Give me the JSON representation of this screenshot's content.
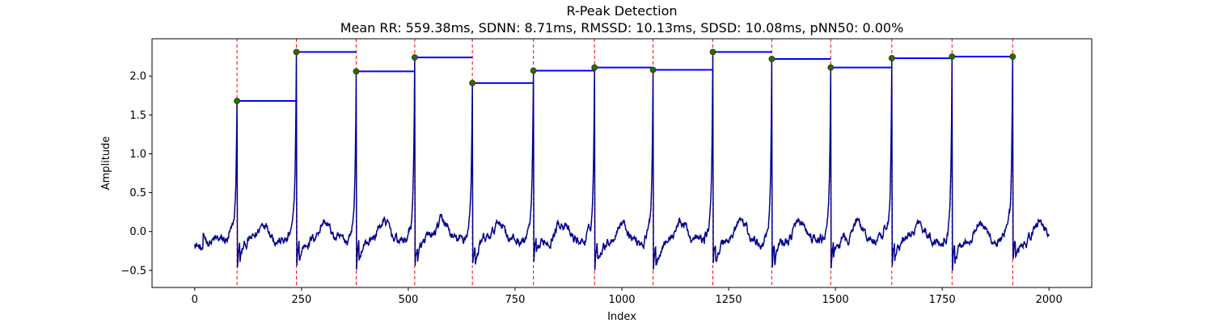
{
  "chart_data": {
    "type": "line",
    "title": "R-Peak Detection",
    "subtitle": "Mean RR: 559.38ms, SDNN: 8.71ms, RMSSD: 10.13ms, SDSD: 10.08ms, pNN50: 0.00%",
    "xlabel": "Index",
    "ylabel": "Amplitude",
    "xlim": [
      -100,
      2100
    ],
    "ylim": [
      -0.72,
      2.48
    ],
    "xticks": [
      0,
      250,
      500,
      750,
      1000,
      1250,
      1500,
      1750,
      2000
    ],
    "yticks": [
      -0.5,
      0.0,
      0.5,
      1.0,
      1.5,
      2.0
    ],
    "xtick_labels": [
      "0",
      "250",
      "500",
      "750",
      "1000",
      "1250",
      "1500",
      "1750",
      "2000"
    ],
    "ytick_labels": [
      "−0.5",
      "0.0",
      "0.5",
      "1.0",
      "1.5",
      "2.0"
    ],
    "grid": false,
    "colors": {
      "signal": "#00008b",
      "peak_marker": "#008000",
      "peak_edge": "#8b0000",
      "peak_line": "#ff0000",
      "rr_segment": "#0000ff"
    },
    "peaks": [
      {
        "x": 99,
        "y": 1.68
      },
      {
        "x": 238,
        "y": 2.31
      },
      {
        "x": 378,
        "y": 2.06
      },
      {
        "x": 515,
        "y": 2.24
      },
      {
        "x": 650,
        "y": 1.91
      },
      {
        "x": 793,
        "y": 2.07
      },
      {
        "x": 936,
        "y": 2.11
      },
      {
        "x": 1073,
        "y": 2.08
      },
      {
        "x": 1213,
        "y": 2.31
      },
      {
        "x": 1351,
        "y": 2.22
      },
      {
        "x": 1489,
        "y": 2.11
      },
      {
        "x": 1632,
        "y": 2.23
      },
      {
        "x": 1773,
        "y": 2.25
      },
      {
        "x": 1915,
        "y": 2.25
      }
    ]
  }
}
